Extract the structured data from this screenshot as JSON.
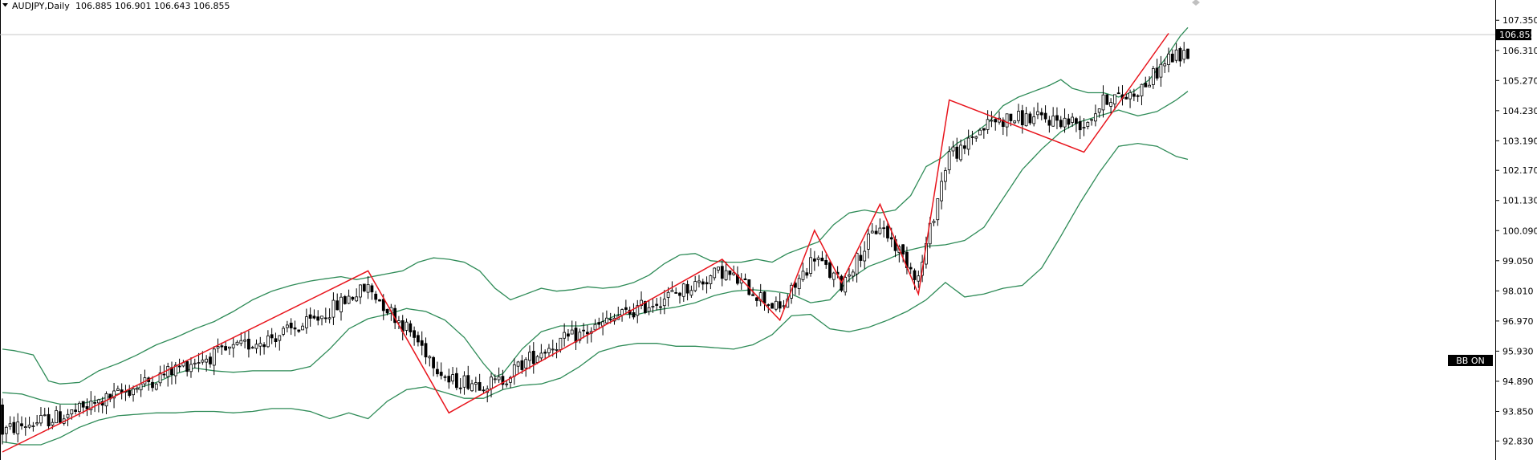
{
  "header": {
    "symbol": "AUDJPY,Daily",
    "ohlc": "106.885 106.901 106.643 106.855"
  },
  "indicator_badge": "BB ON",
  "chart_data": {
    "type": "candlestick",
    "symbol": "AUDJPY",
    "timeframe": "Daily",
    "ylim": [
      92.45,
      107.8
    ],
    "y_ticks": [
      "107.350",
      "106.310",
      "105.270",
      "104.230",
      "103.190",
      "102.170",
      "101.130",
      "100.090",
      "99.050",
      "98.010",
      "96.970",
      "95.930",
      "94.890",
      "93.850",
      "92.830"
    ],
    "last_price": "106.855",
    "current_price_line": 106.855,
    "candles": [],
    "indicators": {
      "bollinger_bands": {
        "upper": [
          [
            0,
            96.0
          ],
          [
            3,
            95.95
          ],
          [
            8,
            95.8
          ],
          [
            12,
            94.9
          ],
          [
            15,
            94.8
          ],
          [
            20,
            94.85
          ],
          [
            25,
            95.25
          ],
          [
            30,
            95.5
          ],
          [
            35,
            95.8
          ],
          [
            40,
            96.15
          ],
          [
            45,
            96.4
          ],
          [
            50,
            96.7
          ],
          [
            55,
            96.95
          ],
          [
            60,
            97.3
          ],
          [
            65,
            97.7
          ],
          [
            70,
            98.0
          ],
          [
            75,
            98.2
          ],
          [
            80,
            98.35
          ],
          [
            85,
            98.45
          ],
          [
            88,
            98.5
          ],
          [
            92,
            98.4
          ],
          [
            96,
            98.5
          ],
          [
            100,
            98.6
          ],
          [
            104,
            98.7
          ],
          [
            108,
            99.0
          ],
          [
            112,
            99.15
          ],
          [
            116,
            99.1
          ],
          [
            120,
            99.0
          ],
          [
            124,
            98.7
          ],
          [
            128,
            98.1
          ],
          [
            132,
            97.7
          ],
          [
            136,
            97.9
          ],
          [
            140,
            98.1
          ],
          [
            144,
            98.0
          ],
          [
            148,
            98.05
          ],
          [
            152,
            98.15
          ],
          [
            156,
            98.1
          ],
          [
            160,
            98.15
          ],
          [
            164,
            98.3
          ],
          [
            168,
            98.55
          ],
          [
            172,
            98.95
          ],
          [
            176,
            99.25
          ],
          [
            180,
            99.3
          ],
          [
            184,
            99.05
          ],
          [
            188,
            99.0
          ],
          [
            192,
            99.0
          ],
          [
            196,
            99.1
          ],
          [
            200,
            99.0
          ],
          [
            204,
            99.3
          ],
          [
            208,
            99.5
          ],
          [
            212,
            99.7
          ],
          [
            216,
            100.3
          ],
          [
            220,
            100.7
          ],
          [
            224,
            100.8
          ],
          [
            228,
            100.7
          ],
          [
            232,
            100.8
          ],
          [
            236,
            101.3
          ],
          [
            240,
            102.3
          ],
          [
            244,
            102.6
          ],
          [
            248,
            103.1
          ],
          [
            252,
            103.4
          ],
          [
            256,
            103.8
          ],
          [
            260,
            104.4
          ],
          [
            264,
            104.7
          ],
          [
            268,
            104.9
          ],
          [
            272,
            105.1
          ],
          [
            275,
            105.3
          ],
          [
            278,
            105.0
          ],
          [
            282,
            104.85
          ],
          [
            286,
            104.85
          ],
          [
            290,
            104.7
          ],
          [
            294,
            104.9
          ],
          [
            298,
            105.3
          ],
          [
            302,
            106.0
          ],
          [
            306,
            106.8
          ],
          [
            308,
            107.1
          ]
        ],
        "middle": [
          [
            0,
            94.5
          ],
          [
            5,
            94.45
          ],
          [
            10,
            94.25
          ],
          [
            15,
            94.1
          ],
          [
            20,
            94.1
          ],
          [
            25,
            94.25
          ],
          [
            30,
            94.45
          ],
          [
            35,
            94.65
          ],
          [
            40,
            94.85
          ],
          [
            45,
            95.15
          ],
          [
            50,
            95.35
          ],
          [
            55,
            95.25
          ],
          [
            60,
            95.2
          ],
          [
            65,
            95.25
          ],
          [
            70,
            95.25
          ],
          [
            75,
            95.25
          ],
          [
            80,
            95.4
          ],
          [
            85,
            96.0
          ],
          [
            90,
            96.7
          ],
          [
            95,
            97.05
          ],
          [
            100,
            97.2
          ],
          [
            105,
            97.4
          ],
          [
            110,
            97.3
          ],
          [
            115,
            97.0
          ],
          [
            120,
            96.4
          ],
          [
            125,
            95.5
          ],
          [
            128,
            95.05
          ],
          [
            130,
            95.15
          ],
          [
            135,
            96.0
          ],
          [
            140,
            96.6
          ],
          [
            145,
            96.8
          ],
          [
            150,
            96.8
          ],
          [
            155,
            96.9
          ],
          [
            160,
            97.2
          ],
          [
            165,
            97.2
          ],
          [
            170,
            97.35
          ],
          [
            175,
            97.45
          ],
          [
            180,
            97.6
          ],
          [
            185,
            97.85
          ],
          [
            190,
            98.0
          ],
          [
            195,
            98.05
          ],
          [
            200,
            98.0
          ],
          [
            205,
            97.9
          ],
          [
            210,
            97.6
          ],
          [
            215,
            97.7
          ],
          [
            220,
            98.4
          ],
          [
            225,
            98.85
          ],
          [
            230,
            99.1
          ],
          [
            235,
            99.4
          ],
          [
            240,
            99.55
          ],
          [
            245,
            99.6
          ],
          [
            250,
            99.75
          ],
          [
            255,
            100.2
          ],
          [
            260,
            101.2
          ],
          [
            265,
            102.2
          ],
          [
            270,
            102.9
          ],
          [
            275,
            103.5
          ],
          [
            280,
            103.85
          ],
          [
            285,
            104.05
          ],
          [
            290,
            104.25
          ],
          [
            295,
            104.05
          ],
          [
            300,
            104.2
          ],
          [
            305,
            104.6
          ],
          [
            308,
            104.9
          ]
        ],
        "lower": [
          [
            0,
            92.8
          ],
          [
            5,
            92.7
          ],
          [
            10,
            92.7
          ],
          [
            15,
            92.95
          ],
          [
            20,
            93.3
          ],
          [
            25,
            93.55
          ],
          [
            30,
            93.7
          ],
          [
            35,
            93.75
          ],
          [
            40,
            93.8
          ],
          [
            45,
            93.8
          ],
          [
            50,
            93.85
          ],
          [
            55,
            93.85
          ],
          [
            60,
            93.8
          ],
          [
            65,
            93.85
          ],
          [
            70,
            93.95
          ],
          [
            75,
            93.95
          ],
          [
            80,
            93.85
          ],
          [
            85,
            93.6
          ],
          [
            90,
            93.8
          ],
          [
            95,
            93.6
          ],
          [
            100,
            94.2
          ],
          [
            105,
            94.6
          ],
          [
            110,
            94.7
          ],
          [
            115,
            94.5
          ],
          [
            120,
            94.3
          ],
          [
            125,
            94.3
          ],
          [
            130,
            94.6
          ],
          [
            135,
            94.75
          ],
          [
            140,
            94.8
          ],
          [
            145,
            95.0
          ],
          [
            150,
            95.4
          ],
          [
            155,
            95.9
          ],
          [
            160,
            96.1
          ],
          [
            165,
            96.2
          ],
          [
            170,
            96.2
          ],
          [
            175,
            96.1
          ],
          [
            180,
            96.1
          ],
          [
            185,
            96.05
          ],
          [
            190,
            96.0
          ],
          [
            195,
            96.15
          ],
          [
            200,
            96.5
          ],
          [
            205,
            97.15
          ],
          [
            210,
            97.2
          ],
          [
            215,
            96.7
          ],
          [
            220,
            96.6
          ],
          [
            225,
            96.75
          ],
          [
            230,
            97.0
          ],
          [
            235,
            97.3
          ],
          [
            240,
            97.7
          ],
          [
            245,
            98.3
          ],
          [
            250,
            97.8
          ],
          [
            255,
            97.9
          ],
          [
            260,
            98.1
          ],
          [
            265,
            98.2
          ],
          [
            270,
            98.8
          ],
          [
            275,
            99.9
          ],
          [
            280,
            101.05
          ],
          [
            285,
            102.1
          ],
          [
            290,
            103.0
          ],
          [
            295,
            103.1
          ],
          [
            300,
            103.0
          ],
          [
            305,
            102.65
          ],
          [
            308,
            102.55
          ]
        ]
      },
      "zigzag": [
        [
          0,
          92.45
        ],
        [
          95,
          98.7
        ],
        [
          116,
          93.8
        ],
        [
          187,
          99.1
        ],
        [
          202,
          97.0
        ],
        [
          211,
          100.1
        ],
        [
          218,
          98.3
        ],
        [
          228,
          101.0
        ],
        [
          238,
          97.9
        ],
        [
          246,
          104.6
        ],
        [
          281,
          102.8
        ],
        [
          303,
          106.9
        ]
      ]
    }
  },
  "colors": {
    "background": "#ffffff",
    "candle_up_fill": "#ffffff",
    "candle_down_fill": "#000000",
    "candle_outline": "#000000",
    "bollinger": "#2e8b57",
    "zigzag": "#e8141c",
    "price_line": "#c8c8c8",
    "price_tag_bg": "#000000",
    "badge_bg": "#000000"
  },
  "icons": {
    "dropdown": "triangle-down-icon"
  }
}
